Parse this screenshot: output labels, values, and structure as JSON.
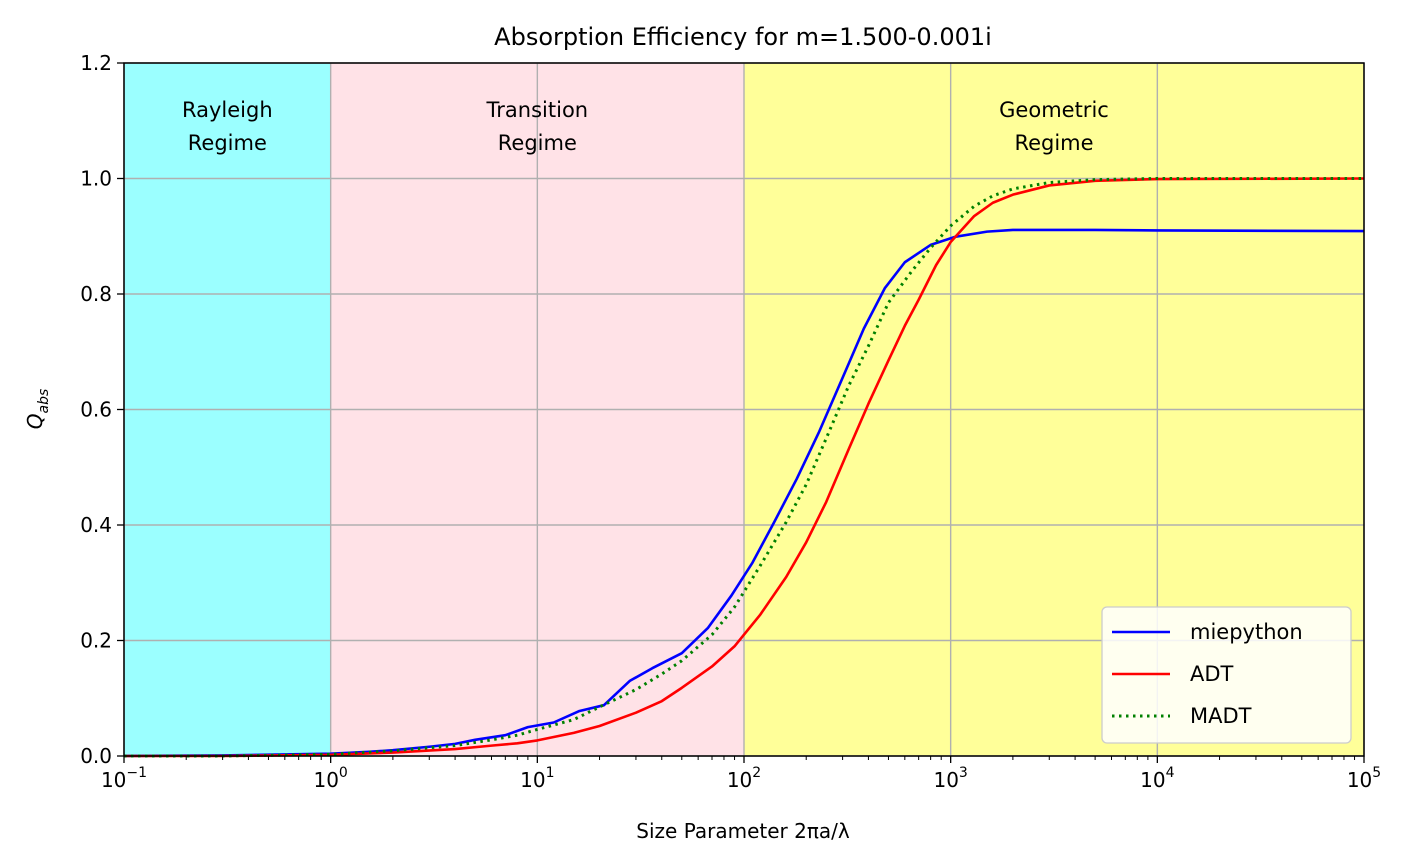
{
  "chart_data": {
    "type": "line",
    "title": "Absorption Efficiency for m=1.500-0.001i",
    "xlabel": "Size Parameter 2πa/λ",
    "ylabel": "Q",
    "ylabel_sub": "abs",
    "xscale": "log",
    "xlim": [
      0.1,
      100000
    ],
    "ylim": [
      0,
      1.2
    ],
    "grid": true,
    "legend_position": "lower right",
    "x_ticks": [
      {
        "base": "10",
        "exp": "−1"
      },
      {
        "base": "10",
        "exp": "0"
      },
      {
        "base": "10",
        "exp": "1"
      },
      {
        "base": "10",
        "exp": "2"
      },
      {
        "base": "10",
        "exp": "3"
      },
      {
        "base": "10",
        "exp": "4"
      },
      {
        "base": "10",
        "exp": "5"
      }
    ],
    "y_ticks": [
      "0.0",
      "0.2",
      "0.4",
      "0.6",
      "0.8",
      "1.0",
      "1.2"
    ],
    "regions": [
      {
        "label_line1": "Rayleigh",
        "label_line2": "Regime",
        "x_start": 0.1,
        "x_end": 1,
        "color": "#9bffff"
      },
      {
        "label_line1": "Transition",
        "label_line2": "Regime",
        "x_start": 1,
        "x_end": 100,
        "color": "#ffe2e7"
      },
      {
        "label_line1": "Geometric",
        "label_line2": "Regime",
        "x_start": 100,
        "x_end": 100000,
        "color": "#ffff99"
      }
    ],
    "series": [
      {
        "name": "miepython",
        "color": "#0000ff",
        "style": "solid",
        "x": [
          0.1,
          0.3,
          1,
          1.5,
          2,
          3,
          4,
          5,
          7,
          9,
          12,
          16,
          21,
          28,
          36,
          50,
          67,
          87,
          110,
          140,
          180,
          230,
          300,
          380,
          480,
          600,
          800,
          1050,
          1500,
          2000,
          5000,
          10000,
          100000
        ],
        "y": [
          0.0,
          0.001,
          0.004,
          0.007,
          0.01,
          0.016,
          0.021,
          0.028,
          0.036,
          0.05,
          0.058,
          0.078,
          0.088,
          0.13,
          0.152,
          0.178,
          0.222,
          0.278,
          0.335,
          0.405,
          0.48,
          0.56,
          0.655,
          0.74,
          0.81,
          0.855,
          0.885,
          0.899,
          0.908,
          0.911,
          0.911,
          0.91,
          0.909
        ]
      },
      {
        "name": "ADT",
        "color": "#ff0000",
        "style": "solid",
        "x": [
          0.1,
          0.3,
          1,
          2,
          4,
          6,
          8,
          10,
          15,
          20,
          30,
          40,
          50,
          70,
          90,
          120,
          160,
          200,
          250,
          320,
          400,
          500,
          600,
          700,
          850,
          1000,
          1300,
          1600,
          2000,
          3000,
          5000,
          10000,
          100000
        ],
        "y": [
          0.0,
          0.0,
          0.002,
          0.006,
          0.012,
          0.018,
          0.022,
          0.027,
          0.04,
          0.052,
          0.075,
          0.095,
          0.118,
          0.155,
          0.19,
          0.245,
          0.31,
          0.37,
          0.44,
          0.53,
          0.61,
          0.685,
          0.745,
          0.79,
          0.85,
          0.89,
          0.935,
          0.958,
          0.972,
          0.988,
          0.996,
          0.999,
          1.0
        ]
      },
      {
        "name": "MADT",
        "color": "#008000",
        "style": "dotted",
        "x": [
          0.1,
          0.3,
          1,
          2,
          4,
          6,
          8,
          10,
          15,
          20,
          30,
          40,
          50,
          70,
          90,
          120,
          160,
          200,
          250,
          320,
          400,
          500,
          650,
          800,
          1000,
          1300,
          1600,
          2000,
          3000,
          5000,
          10000,
          100000
        ],
        "y": [
          0.0,
          0.0,
          0.003,
          0.009,
          0.018,
          0.028,
          0.036,
          0.046,
          0.063,
          0.085,
          0.115,
          0.142,
          0.165,
          0.21,
          0.258,
          0.33,
          0.405,
          0.47,
          0.55,
          0.64,
          0.71,
          0.785,
          0.84,
          0.88,
          0.918,
          0.952,
          0.97,
          0.982,
          0.993,
          0.998,
          1.0,
          1.0
        ]
      }
    ]
  }
}
